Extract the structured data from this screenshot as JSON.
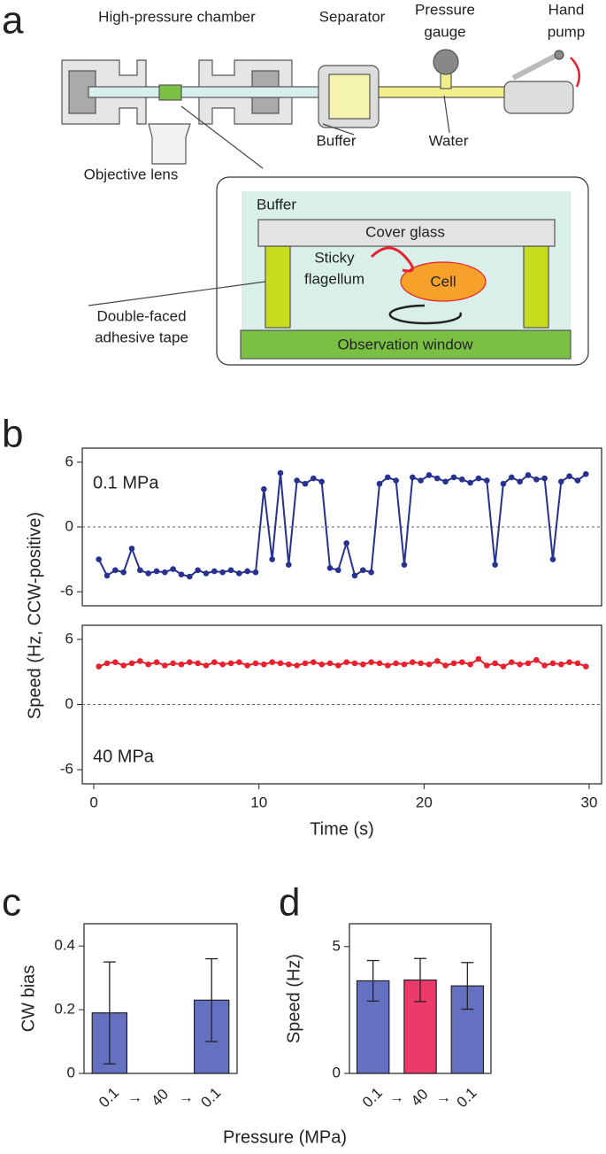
{
  "panel_labels": [
    "a",
    "b",
    "c",
    "d"
  ],
  "diagram": {
    "chamber": "High-pressure chamber",
    "separator": "Separator",
    "gauge": [
      "Pressure",
      "gauge"
    ],
    "pump": [
      "Hand",
      "pump"
    ],
    "objective": "Objective lens",
    "buffer_tube": "Buffer",
    "water": "Water",
    "inset": {
      "buffer": "Buffer",
      "cover_glass": "Cover glass",
      "flagellum": [
        "Sticky",
        "flagellum"
      ],
      "cell": "Cell",
      "tape": [
        "Double-faced",
        "adhesive tape"
      ],
      "window": "Observation window"
    }
  },
  "chart_data": [
    {
      "type": "line",
      "annotation": "0.1 MPa",
      "ylabel": "Speed (Hz, CCW-positive)",
      "zero_line": true,
      "xlim": [
        -0.7,
        30.75
      ],
      "ylim": [
        -7.3,
        7.3
      ],
      "yticks": [
        -6,
        0,
        6
      ],
      "x": [
        0.3,
        0.8,
        1.3,
        1.8,
        2.3,
        2.8,
        3.3,
        3.8,
        4.3,
        4.8,
        5.3,
        5.8,
        6.3,
        6.8,
        7.3,
        7.8,
        8.3,
        8.8,
        9.3,
        9.8,
        10.3,
        10.8,
        11.3,
        11.8,
        12.3,
        12.8,
        13.3,
        13.8,
        14.3,
        14.8,
        15.3,
        15.8,
        16.3,
        16.8,
        17.3,
        17.8,
        18.3,
        18.8,
        19.3,
        19.8,
        20.3,
        20.8,
        21.3,
        21.8,
        22.3,
        22.8,
        23.3,
        23.8,
        24.3,
        24.8,
        25.3,
        25.8,
        26.3,
        26.8,
        27.3,
        27.8,
        28.3,
        28.8,
        29.3,
        29.8
      ],
      "series": [
        {
          "color": "#27318f",
          "values": [
            -3.0,
            -4.5,
            -4.0,
            -4.2,
            -2.0,
            -4.0,
            -4.3,
            -4.1,
            -4.2,
            -3.9,
            -4.4,
            -4.6,
            -4.0,
            -4.3,
            -4.1,
            -4.2,
            -4.0,
            -4.3,
            -4.1,
            -4.2,
            3.5,
            -3.0,
            5.0,
            -3.5,
            4.3,
            4.0,
            4.5,
            4.2,
            -3.8,
            -4.0,
            -1.5,
            -4.5,
            -4.0,
            -4.2,
            4.0,
            4.6,
            4.3,
            -3.5,
            4.6,
            4.3,
            4.8,
            4.5,
            4.2,
            4.6,
            4.4,
            4.1,
            4.5,
            4.3,
            -3.5,
            4.0,
            4.6,
            4.2,
            4.8,
            4.4,
            4.5,
            -3.0,
            4.2,
            4.7,
            4.3,
            4.9
          ]
        }
      ]
    },
    {
      "type": "line",
      "annotation": "40 MPa",
      "xlabel": "Time (s)",
      "zero_line": true,
      "xlim": [
        -0.7,
        30.75
      ],
      "ylim": [
        -7.3,
        7.3
      ],
      "yticks": [
        -6,
        0,
        6
      ],
      "xticks": [
        0,
        10,
        20,
        30
      ],
      "x": [
        0.3,
        0.8,
        1.3,
        1.8,
        2.3,
        2.8,
        3.3,
        3.8,
        4.3,
        4.8,
        5.3,
        5.8,
        6.3,
        6.8,
        7.3,
        7.8,
        8.3,
        8.8,
        9.3,
        9.8,
        10.3,
        10.8,
        11.3,
        11.8,
        12.3,
        12.8,
        13.3,
        13.8,
        14.3,
        14.8,
        15.3,
        15.8,
        16.3,
        16.8,
        17.3,
        17.8,
        18.3,
        18.8,
        19.3,
        19.8,
        20.3,
        20.8,
        21.3,
        21.8,
        22.3,
        22.8,
        23.3,
        23.8,
        24.3,
        24.8,
        25.3,
        25.8,
        26.3,
        26.8,
        27.3,
        27.8,
        28.3,
        28.8,
        29.3,
        29.8
      ],
      "series": [
        {
          "color": "#e8212e",
          "values": [
            3.5,
            3.8,
            3.9,
            3.6,
            3.8,
            4.0,
            3.7,
            3.9,
            3.6,
            3.8,
            3.7,
            3.9,
            3.8,
            3.6,
            3.9,
            3.7,
            3.8,
            3.9,
            3.6,
            3.8,
            3.7,
            3.9,
            3.8,
            3.7,
            3.6,
            3.8,
            3.9,
            3.7,
            3.8,
            3.6,
            3.9,
            3.8,
            3.7,
            3.9,
            3.8,
            3.6,
            3.8,
            3.7,
            3.9,
            3.8,
            3.7,
            4.0,
            3.6,
            3.8,
            3.9,
            3.7,
            4.2,
            3.6,
            3.8,
            3.5,
            3.9,
            3.7,
            3.8,
            4.1,
            3.6,
            3.8,
            3.7,
            3.9,
            3.8,
            3.5
          ]
        }
      ]
    },
    {
      "type": "bar",
      "ylabel": "CW bias",
      "xlabel": "Pressure (MPa)",
      "separator": "→",
      "categories": [
        "0.1",
        "40",
        "0.1"
      ],
      "values": [
        0.19,
        0.0,
        0.23
      ],
      "errors": [
        0.16,
        0.0,
        0.13
      ],
      "colors": [
        "#6470c0",
        "#ee3a6a",
        "#6470c0"
      ],
      "ylim": [
        0,
        0.47
      ],
      "yticks": [
        0,
        0.2,
        0.4
      ]
    },
    {
      "type": "bar",
      "ylabel": "Speed (Hz)",
      "separator": "→",
      "categories": [
        "0.1",
        "40",
        "0.1"
      ],
      "values": [
        3.65,
        3.68,
        3.45
      ],
      "errors": [
        0.8,
        0.85,
        0.92
      ],
      "colors": [
        "#6470c0",
        "#ee3a6a",
        "#6470c0"
      ],
      "ylim": [
        0,
        5.9
      ],
      "yticks": [
        0,
        5
      ]
    }
  ]
}
